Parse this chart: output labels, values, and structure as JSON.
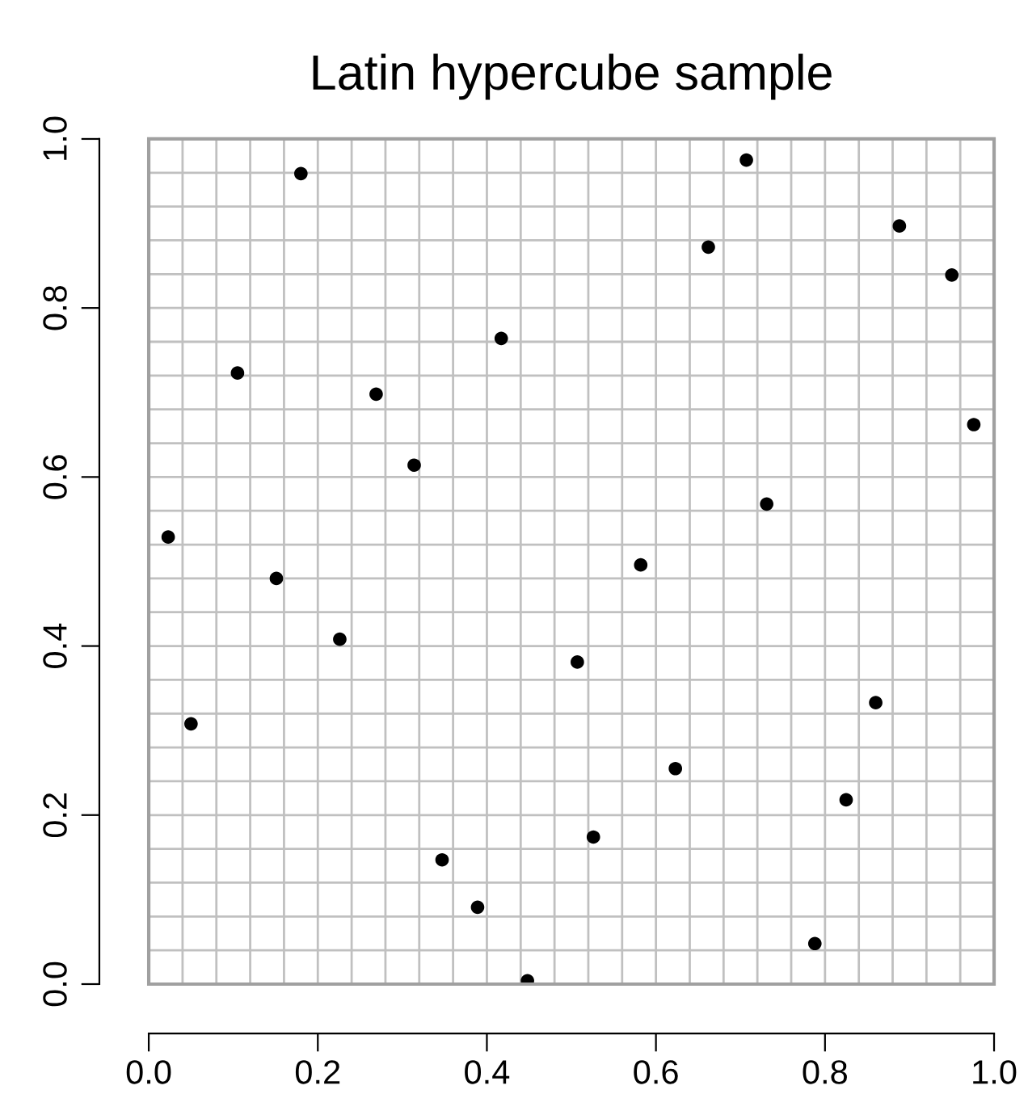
{
  "chart_data": {
    "type": "scatter",
    "title": "Latin hypercube sample",
    "x": [
      0.18,
      0.417,
      0.105,
      0.269,
      0.314,
      0.023,
      0.151,
      0.707,
      0.888,
      0.662,
      0.95,
      0.976,
      0.731,
      0.582,
      0.226,
      0.507,
      0.05,
      0.347,
      0.389,
      0.448,
      0.86,
      0.623,
      0.825,
      0.526,
      0.788
    ],
    "series": [
      {
        "color": "#000000",
        "values": [
          0.959,
          0.764,
          0.723,
          0.698,
          0.614,
          0.529,
          0.48,
          0.975,
          0.897,
          0.872,
          0.839,
          0.662,
          0.568,
          0.496,
          0.408,
          0.381,
          0.308,
          0.147,
          0.091,
          0.004,
          0.333,
          0.255,
          0.218,
          0.174,
          0.048
        ]
      }
    ],
    "xlim": [
      0,
      1
    ],
    "ylim": [
      0,
      1
    ],
    "xticks": [
      {
        "value": 0,
        "label": "0.0"
      },
      0.2,
      0.4,
      0.6,
      0.8,
      {
        "value": 1,
        "label": "1.0"
      }
    ],
    "yticks": [
      {
        "value": 0,
        "label": "0.0"
      },
      0.2,
      0.4,
      0.6,
      0.8,
      {
        "value": 1,
        "label": "1.0"
      }
    ],
    "grid": true,
    "marker": "circle"
  }
}
